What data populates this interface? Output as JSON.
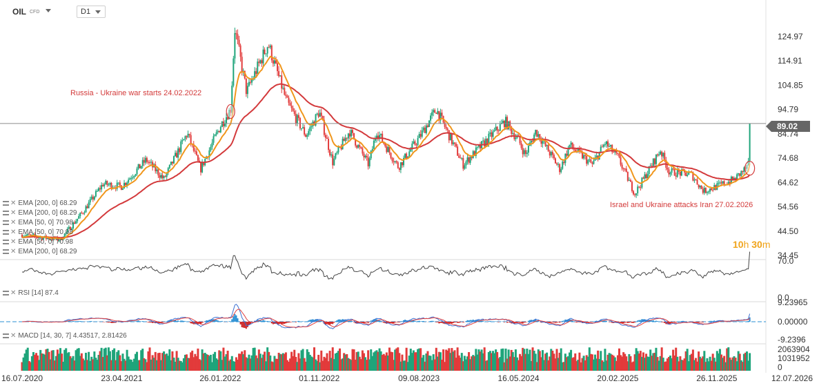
{
  "toolbar": {
    "symbol": "OIL",
    "symbol_suffix": "CFD",
    "timeframe": "D1"
  },
  "countdown": {
    "hours": "10",
    "hours_unit": "h",
    "minutes": "30",
    "minutes_unit": "m"
  },
  "last_price": "89.02",
  "colors": {
    "ema50": "#f0961c",
    "ema200": "#d3393b",
    "up": "#1ea47a",
    "down": "#e23b3b",
    "rsi": "#444444",
    "macd_line": "#3b6fd1",
    "signal_line": "#e04040",
    "hist_pos": "#2a8fd3",
    "hist_neg": "#cc2222"
  },
  "indicators": {
    "ema_legend": [
      "EMA [200, 0] 68.29",
      "EMA [200, 0] 68.29",
      "EMA [50, 0] 70.98",
      "EMA [50, 0] 70.98",
      "EMA [50, 0] 70.98",
      "EMA [200, 0] 68.29"
    ],
    "rsi_label": "RSI [14] 87.4",
    "macd_label": "MACD [14, 30, 7] 4.43517, 2.81426"
  },
  "chart_data": {
    "type": "candlestick",
    "x_tick_labels": [
      "16.07.2020",
      "23.04.2021",
      "26.01.2022",
      "01.11.2022",
      "09.08.2023",
      "16.05.2024",
      "20.02.2025",
      "26.11.2025",
      "12.07.2026"
    ],
    "y_tick_labels": [
      "124.97",
      "114.91",
      "104.85",
      "94.79",
      "84.74",
      "74.68",
      "64.62",
      "54.56",
      "44.50",
      "34.45"
    ],
    "ylim": [
      34.45,
      124.97
    ],
    "annotations": [
      {
        "text": "Russia - Ukraine war starts 24.02.2022",
        "date": "2022-02-24",
        "price": 94.0
      },
      {
        "text": "Israel and Ukraine attacks Iran 27.02.2026",
        "date": "2026-02-27",
        "price": 70.5
      }
    ],
    "close_series": [
      {
        "date": "2020-07-16",
        "close": 43
      },
      {
        "date": "2020-09-01",
        "close": 42
      },
      {
        "date": "2020-11-01",
        "close": 41
      },
      {
        "date": "2021-01-01",
        "close": 52
      },
      {
        "date": "2021-03-01",
        "close": 64
      },
      {
        "date": "2021-04-23",
        "close": 63
      },
      {
        "date": "2021-07-01",
        "close": 74
      },
      {
        "date": "2021-08-20",
        "close": 66
      },
      {
        "date": "2021-10-25",
        "close": 85
      },
      {
        "date": "2021-12-01",
        "close": 70
      },
      {
        "date": "2022-01-26",
        "close": 88
      },
      {
        "date": "2022-02-24",
        "close": 95
      },
      {
        "date": "2022-03-08",
        "close": 128
      },
      {
        "date": "2022-04-10",
        "close": 102
      },
      {
        "date": "2022-06-10",
        "close": 122
      },
      {
        "date": "2022-08-01",
        "close": 98
      },
      {
        "date": "2022-09-25",
        "close": 84
      },
      {
        "date": "2022-11-01",
        "close": 94
      },
      {
        "date": "2022-12-09",
        "close": 73
      },
      {
        "date": "2023-01-25",
        "close": 86
      },
      {
        "date": "2023-03-20",
        "close": 72
      },
      {
        "date": "2023-04-12",
        "close": 86
      },
      {
        "date": "2023-06-12",
        "close": 71
      },
      {
        "date": "2023-08-09",
        "close": 83
      },
      {
        "date": "2023-09-27",
        "close": 95
      },
      {
        "date": "2023-12-12",
        "close": 72
      },
      {
        "date": "2024-04-08",
        "close": 90
      },
      {
        "date": "2024-05-16",
        "close": 82
      },
      {
        "date": "2024-06-04",
        "close": 76
      },
      {
        "date": "2024-07-04",
        "close": 86
      },
      {
        "date": "2024-09-10",
        "close": 70
      },
      {
        "date": "2024-10-07",
        "close": 80
      },
      {
        "date": "2024-12-10",
        "close": 72
      },
      {
        "date": "2025-01-15",
        "close": 81
      },
      {
        "date": "2025-02-20",
        "close": 75
      },
      {
        "date": "2025-04-09",
        "close": 60
      },
      {
        "date": "2025-06-20",
        "close": 78
      },
      {
        "date": "2025-07-15",
        "close": 69
      },
      {
        "date": "2025-09-15",
        "close": 68
      },
      {
        "date": "2025-10-20",
        "close": 61
      },
      {
        "date": "2025-11-26",
        "close": 63
      },
      {
        "date": "2026-01-15",
        "close": 66
      },
      {
        "date": "2026-02-20",
        "close": 71
      },
      {
        "date": "2026-02-27",
        "close": 73
      },
      {
        "date": "2026-03-02",
        "close": 89.02
      }
    ],
    "rsi": {
      "levels": [
        "70.0",
        "0.0"
      ]
    },
    "macd": {
      "levels": [
        "9.23965",
        "0.00000",
        "-9.2396"
      ]
    },
    "volume": {
      "levels": [
        "2063904",
        "1031952",
        "0"
      ]
    }
  }
}
